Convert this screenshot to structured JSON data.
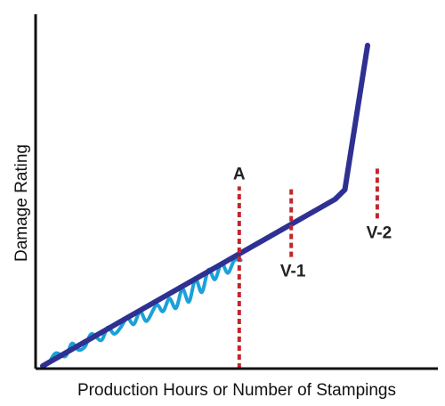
{
  "chart_data": {
    "type": "line",
    "title": "",
    "xlabel": "Production Hours or Number of Stampings",
    "ylabel": "Damage Rating",
    "xlim": [
      0,
      100
    ],
    "ylim": [
      0,
      100
    ],
    "grid": false,
    "legend": "none",
    "series": [
      {
        "kind": "trend",
        "color": "#2E3192",
        "x": [
          0,
          90,
          93,
          100
        ],
        "y": [
          0,
          52,
          55,
          100
        ]
      },
      {
        "kind": "measured",
        "color": "#1BA1D8",
        "x": [
          2,
          4,
          7,
          9,
          11,
          13,
          15,
          18,
          20,
          22,
          24,
          26,
          28,
          30,
          32,
          35,
          37,
          39,
          41,
          43,
          45,
          47,
          49,
          51,
          53,
          55,
          57,
          59,
          61
        ],
        "y": [
          1,
          4,
          3,
          7,
          5,
          6,
          10,
          8,
          12,
          10,
          12,
          15,
          13,
          17,
          14,
          19,
          17,
          21,
          18,
          24,
          20,
          27,
          23,
          30,
          27,
          32,
          29,
          33,
          33
        ]
      }
    ],
    "markers": [
      {
        "label": "A",
        "x": 60.5,
        "y_bottom": 0,
        "y_top": 56,
        "color": "#C1272D"
      },
      {
        "label": "V-1",
        "x": 76.5,
        "y_bottom": 34,
        "y_top": 56,
        "color": "#C1272D"
      },
      {
        "label": "V-2",
        "x": 103,
        "y_bottom": 46,
        "y_top": 62,
        "color": "#C1272D"
      }
    ],
    "colors": {
      "axis": "#111111",
      "trend": "#2E3192",
      "measured": "#1BA1D8",
      "marker": "#C1272D"
    }
  }
}
